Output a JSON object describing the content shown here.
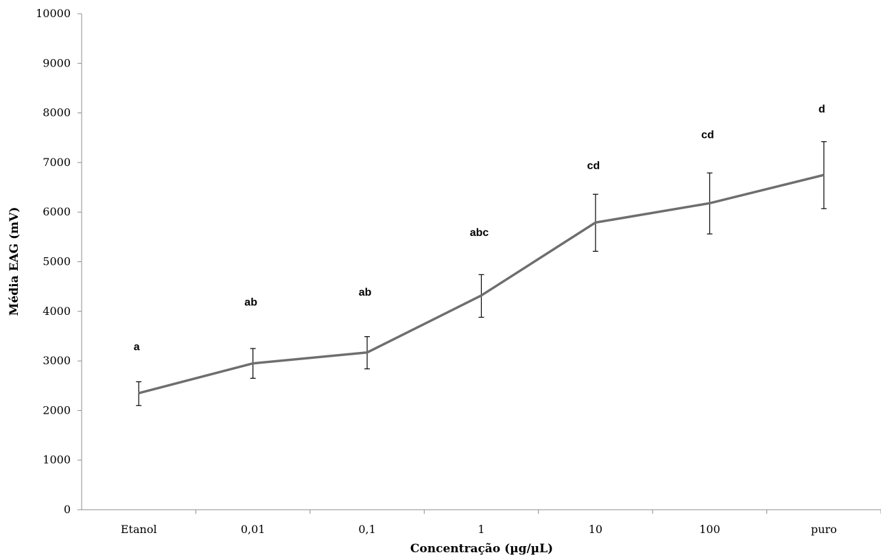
{
  "chart_data": {
    "type": "line",
    "title": "",
    "xlabel": "Concentração (µg/µL)",
    "ylabel": "Média EAG (mV)",
    "ylim": [
      0,
      10000
    ],
    "yticks": [
      0,
      1000,
      2000,
      3000,
      4000,
      5000,
      6000,
      7000,
      8000,
      9000,
      10000
    ],
    "categories": [
      "Etanol",
      "0,01",
      "0,1",
      "1",
      "10",
      "100",
      "puro"
    ],
    "series": [
      {
        "values": [
          2350,
          2950,
          3170,
          4320,
          5790,
          6180,
          6750
        ],
        "error_low": [
          2100,
          2650,
          2840,
          3880,
          5210,
          5560,
          6070
        ],
        "error_high": [
          2580,
          3250,
          3490,
          4740,
          6360,
          6790,
          7420
        ],
        "color": "#6e6e6e"
      }
    ],
    "annotations": [
      "a",
      "ab",
      "ab",
      "abc",
      "cd",
      "cd",
      "d"
    ],
    "annotation_y": [
      3300,
      4200,
      4400,
      5600,
      6950,
      7570,
      8090
    ],
    "grid": false,
    "legend": "none"
  }
}
